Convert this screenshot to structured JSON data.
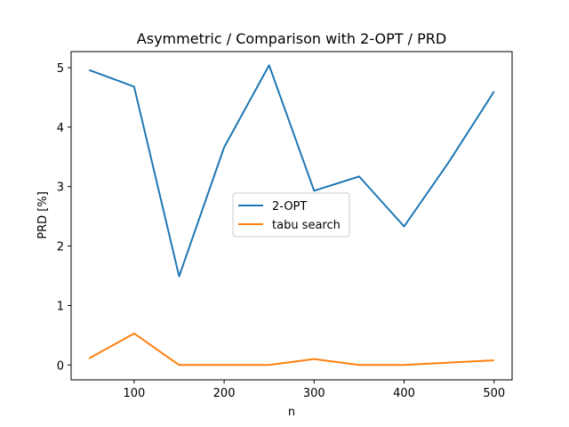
{
  "chart_data": {
    "type": "line",
    "title": "Asymmetric / Comparison with 2-OPT / PRD",
    "xlabel": "n",
    "ylabel": "PRD [%]",
    "x": [
      50,
      100,
      150,
      200,
      250,
      300,
      350,
      400,
      450,
      500
    ],
    "xlim": [
      30,
      520
    ],
    "ylim": [
      -0.25,
      5.27
    ],
    "xticks": [
      100,
      200,
      300,
      400,
      500
    ],
    "yticks": [
      0,
      1,
      2,
      3,
      4,
      5
    ],
    "grid": false,
    "legend_position": "center",
    "series": [
      {
        "name": "2-OPT",
        "color": "#1f77b4",
        "values": [
          4.96,
          4.68,
          1.49,
          3.66,
          5.04,
          2.93,
          3.17,
          2.33,
          3.42,
          4.6
        ]
      },
      {
        "name": "tabu search",
        "color": "#ff7f0e",
        "values": [
          0.11,
          0.53,
          0.0,
          0.0,
          0.0,
          0.1,
          0.0,
          0.0,
          0.04,
          0.08
        ]
      }
    ]
  }
}
